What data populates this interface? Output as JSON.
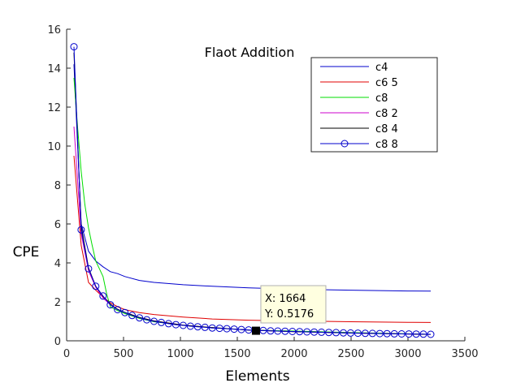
{
  "chart_data": {
    "type": "line",
    "title": "Flaot Addition",
    "xlabel": "Elements",
    "ylabel": "CPE",
    "xlim": [
      0,
      3500
    ],
    "ylim": [
      0,
      16
    ],
    "xticks": [
      0,
      500,
      1000,
      1500,
      2000,
      2500,
      3000,
      3500
    ],
    "yticks": [
      0,
      2,
      4,
      6,
      8,
      10,
      12,
      14,
      16
    ],
    "grid": false,
    "legend_position": "top-right",
    "series": [
      {
        "name": "c4",
        "color": "#0000cc",
        "marker": "none",
        "x": [
          64,
          128,
          192,
          256,
          320,
          384,
          448,
          512,
          640,
          768,
          1024,
          1280,
          1600,
          2000,
          2500,
          3000,
          3200
        ],
        "y": [
          14.2,
          6.0,
          4.6,
          4.1,
          3.8,
          3.55,
          3.45,
          3.3,
          3.1,
          3.0,
          2.88,
          2.8,
          2.72,
          2.65,
          2.6,
          2.56,
          2.55
        ]
      },
      {
        "name": "c6 5",
        "color": "#e00000",
        "marker": "none",
        "x": [
          64,
          128,
          192,
          256,
          320,
          384,
          448,
          512,
          640,
          768,
          1024,
          1280,
          1600,
          2000,
          2500,
          3000,
          3200
        ],
        "y": [
          9.5,
          4.9,
          3.0,
          2.6,
          2.25,
          1.95,
          1.75,
          1.6,
          1.45,
          1.35,
          1.22,
          1.12,
          1.06,
          1.02,
          0.98,
          0.95,
          0.94
        ]
      },
      {
        "name": "c8",
        "color": "#00dd00",
        "marker": "none",
        "x": [
          64,
          96,
          128,
          160,
          192,
          224,
          256,
          288,
          320,
          352,
          384,
          448,
          512,
          640,
          768,
          1024,
          1280,
          1600,
          2000,
          2500,
          3000,
          3200
        ],
        "y": [
          13.5,
          11.0,
          8.7,
          7.0,
          5.8,
          4.9,
          4.1,
          3.7,
          3.3,
          2.4,
          1.75,
          1.55,
          1.4,
          1.15,
          0.98,
          0.8,
          0.68,
          0.55,
          0.5,
          0.42,
          0.36,
          0.33
        ]
      },
      {
        "name": "c8 2",
        "color": "#cc00cc",
        "marker": "none",
        "x": [
          64,
          128,
          192,
          256,
          320,
          384,
          448,
          512,
          640,
          768,
          1024,
          1280,
          1600,
          2000,
          2500,
          3000,
          3200
        ],
        "y": [
          11.0,
          5.5,
          3.6,
          2.75,
          2.2,
          1.85,
          1.6,
          1.45,
          1.2,
          1.02,
          0.8,
          0.68,
          0.55,
          0.47,
          0.4,
          0.35,
          0.33
        ]
      },
      {
        "name": "c8 4",
        "color": "#000000",
        "marker": "none",
        "x": [
          64,
          128,
          192,
          256,
          320,
          384,
          448,
          512,
          640,
          768,
          1024,
          1280,
          1600,
          2000,
          2500,
          3000,
          3200
        ],
        "y": [
          14.8,
          5.9,
          3.75,
          2.8,
          2.28,
          1.88,
          1.62,
          1.46,
          1.2,
          1.02,
          0.8,
          0.68,
          0.55,
          0.47,
          0.4,
          0.35,
          0.33
        ]
      },
      {
        "name": "c8 8",
        "color": "#0000cc",
        "marker": "circle",
        "x": [
          64,
          128,
          192,
          256,
          320,
          384,
          448,
          512,
          576,
          640,
          704,
          768,
          832,
          896,
          960,
          1024,
          1088,
          1152,
          1216,
          1280,
          1344,
          1408,
          1472,
          1536,
          1600,
          1664,
          1728,
          1792,
          1856,
          1920,
          1984,
          2048,
          2112,
          2176,
          2240,
          2304,
          2368,
          2432,
          2496,
          2560,
          2624,
          2688,
          2752,
          2816,
          2880,
          2944,
          3008,
          3072,
          3136,
          3200
        ],
        "y": [
          15.1,
          5.7,
          3.7,
          2.8,
          2.3,
          1.85,
          1.6,
          1.45,
          1.3,
          1.18,
          1.08,
          1.0,
          0.94,
          0.88,
          0.83,
          0.79,
          0.75,
          0.72,
          0.69,
          0.66,
          0.64,
          0.62,
          0.6,
          0.58,
          0.56,
          0.5176,
          0.53,
          0.51,
          0.5,
          0.49,
          0.48,
          0.47,
          0.46,
          0.45,
          0.44,
          0.43,
          0.42,
          0.41,
          0.4,
          0.39,
          0.385,
          0.38,
          0.37,
          0.365,
          0.36,
          0.355,
          0.35,
          0.345,
          0.34,
          0.335
        ]
      }
    ],
    "datatip": {
      "x_label": "X: 1664",
      "y_label": "Y: 0.5176",
      "x": 1664,
      "y": 0.5176
    }
  }
}
